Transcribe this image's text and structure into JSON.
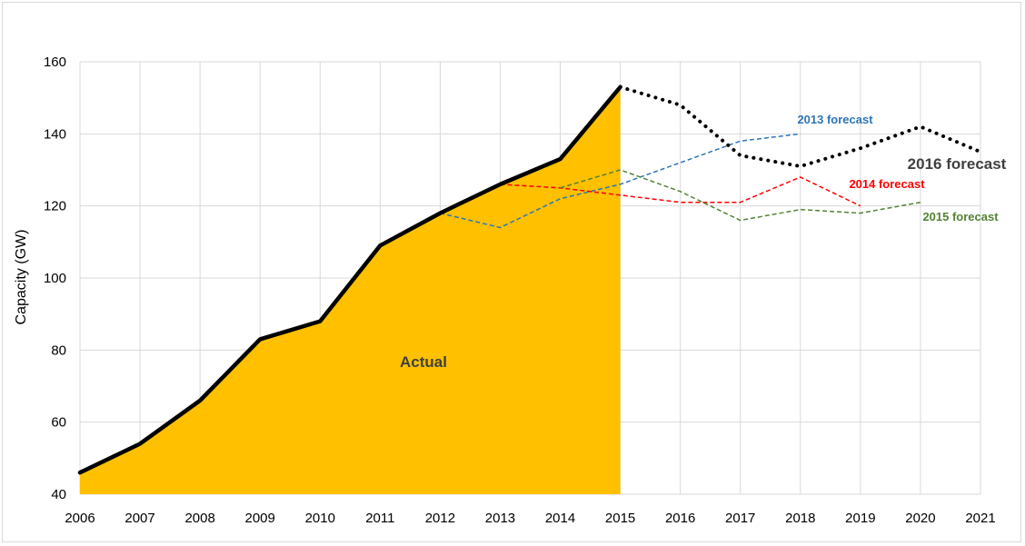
{
  "chart_data": {
    "type": "line",
    "title": "",
    "xlabel": "",
    "ylabel": "Capacity (GW)",
    "xlim": [
      2006,
      2021
    ],
    "ylim": [
      40,
      160
    ],
    "x_ticks": [
      "2006",
      "2007",
      "2008",
      "2009",
      "2010",
      "2011",
      "2012",
      "2013",
      "2014",
      "2015",
      "2016",
      "2017",
      "2018",
      "2019",
      "2020",
      "2021"
    ],
    "y_ticks": [
      "40",
      "60",
      "80",
      "100",
      "120",
      "140",
      "160"
    ],
    "grid": true,
    "area_label": "Actual",
    "series": [
      {
        "key": "actual",
        "name": "Actual",
        "style": "area+solid",
        "x": [
          2006,
          2007,
          2008,
          2009,
          2010,
          2011,
          2012,
          2013,
          2014,
          2015
        ],
        "y": [
          46,
          54,
          66,
          83,
          88,
          109,
          118,
          126,
          133,
          153
        ]
      },
      {
        "key": "f2013",
        "name": "2013 forecast",
        "style": "dashed",
        "x": [
          2012,
          2013,
          2014,
          2015,
          2016,
          2017,
          2018
        ],
        "y": [
          118,
          114,
          122,
          126,
          132,
          138,
          140
        ]
      },
      {
        "key": "f2014",
        "name": "2014 forecast",
        "style": "dashed",
        "x": [
          2013,
          2014,
          2015,
          2016,
          2017,
          2018,
          2019
        ],
        "y": [
          126,
          125,
          123,
          121,
          121,
          128,
          120
        ]
      },
      {
        "key": "f2015",
        "name": "2015 forecast",
        "style": "dashed",
        "x": [
          2014,
          2015,
          2016,
          2017,
          2018,
          2019,
          2020
        ],
        "y": [
          125,
          130,
          124,
          116,
          119,
          118,
          121
        ]
      },
      {
        "key": "f2016",
        "name": "2016 forecast",
        "style": "dotted",
        "x": [
          2015,
          2016,
          2017,
          2018,
          2019,
          2020,
          2021
        ],
        "y": [
          153,
          148,
          134,
          131,
          136,
          142,
          135
        ]
      }
    ],
    "colors": {
      "area": "#ffc000",
      "actual": "#000000",
      "f2013": "#2e75b6",
      "f2014": "#ff0000",
      "f2015": "#548235",
      "f2016": "#000000",
      "grid": "#d9d9d9",
      "label_actual": "#404040",
      "label_2016": "#404040"
    }
  }
}
